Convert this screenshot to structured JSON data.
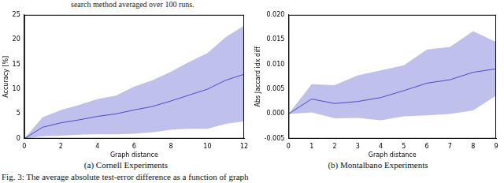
{
  "header_text": "search method averaged over 100 runs.",
  "footer_text": "Fig. 3: The average absolute test-error difference as a function of graph",
  "chart_data": [
    {
      "type": "line",
      "caption": "(a) Cornell Experiments",
      "x_label": "Graph distance",
      "y_label": "Accuracy [%]",
      "x": [
        0,
        1,
        2,
        3,
        4,
        5,
        6,
        7,
        8,
        9,
        10,
        11,
        12
      ],
      "values": [
        0,
        2.3,
        3.2,
        3.8,
        4.5,
        5.0,
        5.8,
        6.5,
        7.6,
        8.8,
        10.0,
        11.8,
        13.0
      ],
      "upper": [
        0,
        4.3,
        5.8,
        6.8,
        8.0,
        8.7,
        10.5,
        11.8,
        13.5,
        15.5,
        17.3,
        20.5,
        22.8
      ],
      "lower": [
        0,
        0.5,
        0.6,
        0.8,
        0.9,
        0.9,
        1.0,
        1.3,
        1.8,
        2.0,
        2.0,
        3.0,
        3.5
      ],
      "color": "#4b4bc8",
      "xlim": [
        0,
        12
      ],
      "xticks": [
        0,
        2,
        4,
        6,
        8,
        10,
        12
      ],
      "ylim": [
        0,
        25
      ],
      "yticks": [
        0,
        5,
        10,
        15,
        20,
        25
      ],
      "grid": false
    },
    {
      "type": "line",
      "caption": "(b) Montalbano Experiments",
      "x_label": "Graph distance",
      "y_label": "Abs Jaccard idx diff",
      "x": [
        0,
        1,
        2,
        3,
        4,
        5,
        6,
        7,
        8,
        9
      ],
      "values": [
        0,
        0.003,
        0.0021,
        0.0025,
        0.0033,
        0.0047,
        0.0062,
        0.0069,
        0.0084,
        0.0091
      ],
      "upper": [
        0,
        0.006,
        0.0058,
        0.0078,
        0.0088,
        0.0098,
        0.013,
        0.0135,
        0.0167,
        0.0145
      ],
      "lower": [
        0,
        0.0003,
        -0.0009,
        -0.0008,
        -0.0013,
        -0.0005,
        -0.0003,
        0.0,
        0.0007,
        0.0037
      ],
      "color": "#4b4bc8",
      "xlim": [
        0,
        9
      ],
      "xticks": [
        0,
        1,
        2,
        3,
        4,
        5,
        6,
        7,
        8,
        9
      ],
      "ylim": [
        -0.005,
        0.02
      ],
      "yticks": [
        {
          "value": -0.005,
          "label": "-0.005"
        },
        {
          "value": 0,
          "label": "0.000"
        },
        {
          "value": 0.005,
          "label": "0.005"
        },
        {
          "value": 0.01,
          "label": "0.010"
        },
        {
          "value": 0.015,
          "label": "0.015"
        },
        {
          "value": 0.02,
          "label": "0.020"
        }
      ],
      "grid": false
    }
  ]
}
